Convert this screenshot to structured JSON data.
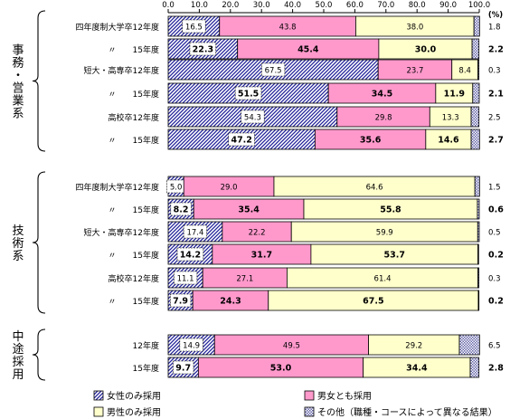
{
  "chart_data": {
    "type": "bar",
    "orientation": "horizontal",
    "stacked": true,
    "percent_axis": {
      "min": 0,
      "max": 100,
      "ticks": [
        "0.0",
        "10.0",
        "20.0",
        "30.0",
        "40.0",
        "50.0",
        "60.0",
        "70.0",
        "80.0",
        "90.0",
        "100.0"
      ],
      "unit": "(%)",
      "position": "top"
    },
    "series": [
      {
        "name": "女性のみ採用",
        "key": "female",
        "color": "#3333aa",
        "pattern": "diagonal-hatch"
      },
      {
        "name": "男女とも採用",
        "key": "both",
        "color": "#ff99cc",
        "pattern": "solid"
      },
      {
        "name": "男性のみ採用",
        "key": "male",
        "color": "#ffffcc",
        "pattern": "solid"
      },
      {
        "name": "その他（職種・コースによって異なる結果）",
        "key": "other",
        "color": "#9999cc",
        "pattern": "dots"
      }
    ],
    "groups": [
      {
        "label": "事務・営業系",
        "rows": [
          {
            "category": "四年度制大学卒12年度",
            "values": [
              16.5,
              43.8,
              38.0,
              1.8
            ],
            "labels": [
              "16.5",
              "43.8",
              "38.0",
              "1.8"
            ],
            "bold": false
          },
          {
            "category": "〃　　15年度",
            "values": [
              22.3,
              45.4,
              30.0,
              2.2
            ],
            "labels": [
              "22.3",
              "45.4",
              "30.0",
              "2.2"
            ],
            "bold": true
          },
          {
            "category": "短大・高専卒12年度",
            "values": [
              67.5,
              23.7,
              8.4,
              0.3
            ],
            "labels": [
              "67.5",
              "23.7",
              "8.4",
              "0.3"
            ],
            "bold": false
          },
          {
            "category": "〃　　15年度",
            "values": [
              51.5,
              34.5,
              11.9,
              2.1
            ],
            "labels": [
              "51.5",
              "34.5",
              "11.9",
              "2.1"
            ],
            "bold": true
          },
          {
            "category": "高校卒12年度",
            "values": [
              54.3,
              29.8,
              13.3,
              2.5
            ],
            "labels": [
              "54.3",
              "29.8",
              "13.3",
              "2.5"
            ],
            "bold": false
          },
          {
            "category": "〃　　15年度",
            "values": [
              47.2,
              35.6,
              14.6,
              2.7
            ],
            "labels": [
              "47.2",
              "35.6",
              "14.6",
              "2.7"
            ],
            "bold": true
          }
        ]
      },
      {
        "label": "技術系",
        "rows": [
          {
            "category": "四年度制大学卒12年度",
            "values": [
              5.0,
              29.0,
              64.6,
              1.5
            ],
            "labels": [
              "5.0",
              "29.0",
              "64.6",
              "1.5"
            ],
            "bold": false
          },
          {
            "category": "〃　　15年度",
            "values": [
              8.2,
              35.4,
              55.8,
              0.6
            ],
            "labels": [
              "8.2",
              "35.4",
              "55.8",
              "0.6"
            ],
            "bold": true
          },
          {
            "category": "短大・高専卒12年度",
            "values": [
              17.4,
              22.2,
              59.9,
              0.5
            ],
            "labels": [
              "17.4",
              "22.2",
              "59.9",
              "0.5"
            ],
            "bold": false
          },
          {
            "category": "〃　　15年度",
            "values": [
              14.2,
              31.7,
              53.7,
              0.2
            ],
            "labels": [
              "14.2",
              "31.7",
              "53.7",
              "0.2"
            ],
            "bold": true
          },
          {
            "category": "高校卒12年度",
            "values": [
              11.1,
              27.1,
              61.4,
              0.3
            ],
            "labels": [
              "11.1",
              "27.1",
              "61.4",
              "0.3"
            ],
            "bold": false
          },
          {
            "category": "〃　　15年度",
            "values": [
              7.9,
              24.3,
              67.5,
              0.2
            ],
            "labels": [
              "7.9",
              "24.3",
              "67.5",
              "0.2"
            ],
            "bold": true
          }
        ]
      },
      {
        "label": "中途採用",
        "rows": [
          {
            "category": "12年度",
            "values": [
              14.9,
              49.5,
              29.2,
              6.5
            ],
            "labels": [
              "14.9",
              "49.5",
              "29.2",
              "6.5"
            ],
            "bold": false
          },
          {
            "category": "15年度",
            "values": [
              9.7,
              53.0,
              34.4,
              2.8
            ],
            "labels": [
              "9.7",
              "53.0",
              "34.4",
              "2.8"
            ],
            "bold": true
          }
        ]
      }
    ],
    "legend": {
      "placement": "bottom",
      "columns": 2
    }
  }
}
